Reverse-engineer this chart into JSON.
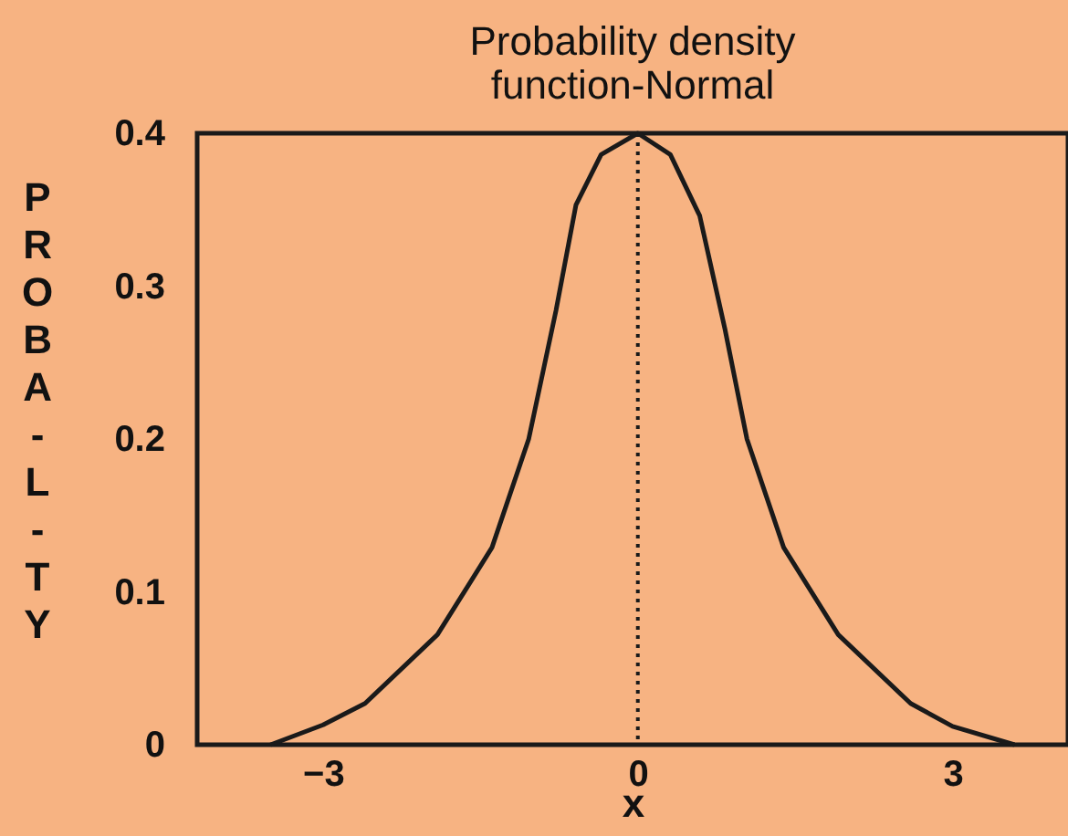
{
  "chart_data": {
    "type": "line",
    "title": "Probability density function-Normal",
    "xlabel": "x",
    "ylabel": "PROBA-L-TY",
    "x": [
      -3.5,
      -3,
      -2.6,
      -1.91,
      -1.39,
      -1.04,
      -0.78,
      -0.59,
      -0.35,
      0,
      0.31,
      0.59,
      0.83,
      1.04,
      1.39,
      1.91,
      2.6,
      3,
      3.59
    ],
    "series": [
      {
        "color": "#1a1a1a",
        "values": [
          0,
          0.013,
          0.027,
          0.072,
          0.129,
          0.2,
          0.284,
          0.353,
          0.386,
          0.4,
          0.386,
          0.346,
          0.272,
          0.2,
          0.129,
          0.072,
          0.027,
          0.012,
          0
        ]
      }
    ],
    "xlim": [
      -4.2,
      4.1
    ],
    "xticks": [
      -3,
      0,
      3
    ],
    "ylim": [
      0,
      0.4
    ],
    "yticks": [
      0,
      0.1,
      0.2,
      0.3,
      0.4
    ],
    "ref_lines": [
      {
        "axis": "x",
        "value": 0,
        "line_style": "dotted",
        "color": "#1a1a1a"
      }
    ],
    "grid": false,
    "marker": "none",
    "line_style": "solid"
  }
}
